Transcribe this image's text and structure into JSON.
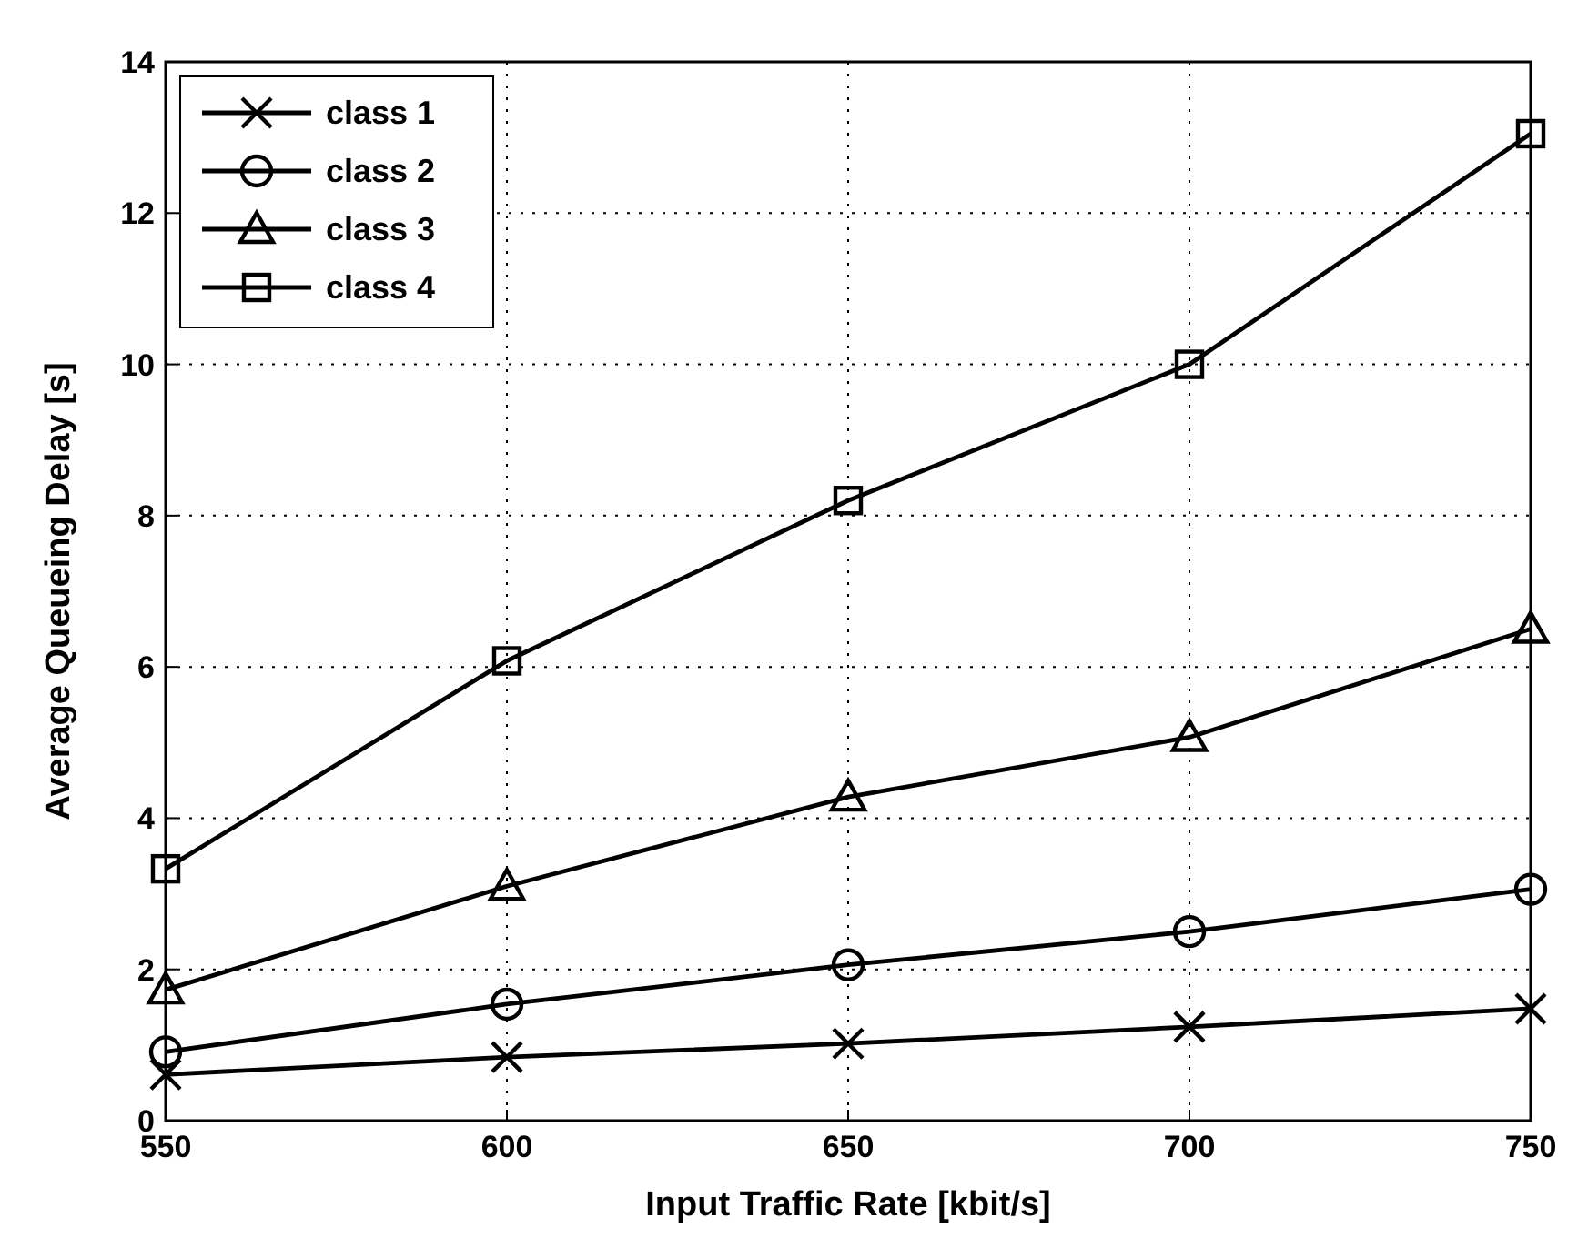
{
  "chart_data": {
    "type": "line",
    "xlabel": "Input Traffic Rate [kbit/s]",
    "ylabel": "Average Queueing Delay [s]",
    "x": [
      550,
      600,
      650,
      700,
      750
    ],
    "series": [
      {
        "name": "class 1",
        "color": "#000000",
        "marker": "cross",
        "values": [
          0.61,
          0.84,
          1.02,
          1.24,
          1.48
        ]
      },
      {
        "name": "class 2",
        "color": "#000000",
        "marker": "circle",
        "values": [
          0.91,
          1.54,
          2.06,
          2.5,
          3.06
        ]
      },
      {
        "name": "class 3",
        "color": "#000000",
        "marker": "triangle",
        "values": [
          1.73,
          3.1,
          4.28,
          5.07,
          6.5
        ]
      },
      {
        "name": "class 4",
        "color": "#000000",
        "marker": "square",
        "values": [
          3.33,
          6.08,
          8.2,
          10.0,
          13.05
        ]
      }
    ],
    "xlim": [
      550,
      750
    ],
    "xticks": [
      550,
      600,
      650,
      700,
      750
    ],
    "ylim": [
      0,
      14
    ],
    "yticks": [
      0,
      2,
      4,
      6,
      8,
      10,
      12,
      14
    ],
    "grid": true,
    "legend": "top left",
    "line_style": "solid"
  }
}
